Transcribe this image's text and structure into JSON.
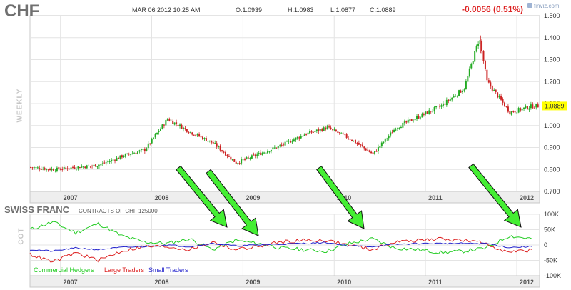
{
  "header": {
    "ticker": "CHF",
    "datetime": "MAR 06 2012 10:25 AM",
    "open": "O:1.0939",
    "high": "H:1.0983",
    "low": "L:1.0877",
    "close": "C:1.0889",
    "change": "-0.0056 (0.51%)",
    "watermark": "finviz.com"
  },
  "price_panel": {
    "side_label": "WEEKLY",
    "current_price_label": "1.0889",
    "current_price_color": "#ffff00"
  },
  "cot_panel": {
    "title": "SWISS FRANC",
    "subtitle": "CONTRACTS OF CHF 125000",
    "side_label": "COT",
    "legend": [
      {
        "name": "Commercial Hedgers",
        "color": "#22cc22"
      },
      {
        "name": "Large Traders",
        "color": "#dd2222"
      },
      {
        "name": "Small Traders",
        "color": "#2222cc"
      }
    ]
  },
  "colors": {
    "up_candle": "#22aa22",
    "down_candle": "#cc2222",
    "arrow_fill": "#44ee33",
    "arrow_stroke": "#111111"
  },
  "chart_data": [
    {
      "type": "candlestick",
      "interval": "weekly",
      "ylim": [
        0.7,
        1.5
      ],
      "y_ticks": [
        "0.700",
        "0.800",
        "0.900",
        "1.000",
        "1.100",
        "1.200",
        "1.300",
        "1.400",
        "1.500"
      ],
      "x_tick_labels": [
        "2007",
        "2008",
        "2009",
        "2010",
        "2011",
        "2012"
      ],
      "x": [
        "2006-09",
        "2006-12",
        "2007-03",
        "2007-06",
        "2007-09",
        "2007-12",
        "2008-03",
        "2008-06",
        "2008-09",
        "2008-12",
        "2009-03",
        "2009-06",
        "2009-09",
        "2009-12",
        "2010-03",
        "2010-06",
        "2010-09",
        "2010-12",
        "2011-03",
        "2011-06",
        "2011-08",
        "2011-09",
        "2011-12",
        "2012-03"
      ],
      "close": [
        0.81,
        0.8,
        0.81,
        0.82,
        0.86,
        0.89,
        1.03,
        0.97,
        0.92,
        0.83,
        0.87,
        0.91,
        0.96,
        0.99,
        0.94,
        0.87,
        0.99,
        1.04,
        1.09,
        1.17,
        1.4,
        1.2,
        1.06,
        1.0889
      ],
      "high_max": 1.41,
      "last": 1.0889
    },
    {
      "type": "line",
      "ylim": [
        -100000,
        100000
      ],
      "y_ticks": [
        "100K",
        "50K",
        "0",
        "-50K",
        "-100K"
      ],
      "x_tick_labels": [
        "2007",
        "2008",
        "2009",
        "2010",
        "2011",
        "2012"
      ],
      "x": [
        "2006-09",
        "2006-12",
        "2007-03",
        "2007-06",
        "2007-09",
        "2007-12",
        "2008-03",
        "2008-06",
        "2008-09",
        "2008-12",
        "2009-03",
        "2009-06",
        "2009-09",
        "2009-12",
        "2010-03",
        "2010-06",
        "2010-09",
        "2010-12",
        "2011-03",
        "2011-06",
        "2011-09",
        "2011-12",
        "2012-03"
      ],
      "series": [
        {
          "name": "Commercial Hedgers",
          "values": [
            50000,
            75000,
            40000,
            70000,
            30000,
            10000,
            5000,
            20000,
            -15000,
            15000,
            5000,
            -10000,
            -15000,
            -20000,
            5000,
            20000,
            -10000,
            -15000,
            -25000,
            -20000,
            -10000,
            30000,
            20000
          ]
        },
        {
          "name": "Large Traders",
          "values": [
            -30000,
            -55000,
            -25000,
            -50000,
            -20000,
            -5000,
            -5000,
            -15000,
            10000,
            -15000,
            -5000,
            10000,
            15000,
            15000,
            0,
            -15000,
            10000,
            15000,
            20000,
            15000,
            5000,
            -25000,
            -15000
          ]
        },
        {
          "name": "Small Traders",
          "values": [
            -15000,
            -20000,
            -10000,
            -15000,
            -8000,
            -5000,
            0,
            -5000,
            5000,
            -3000,
            0,
            3000,
            5000,
            8000,
            -3000,
            -5000,
            2000,
            5000,
            5000,
            5000,
            5000,
            -8000,
            -5000
          ]
        }
      ]
    }
  ]
}
